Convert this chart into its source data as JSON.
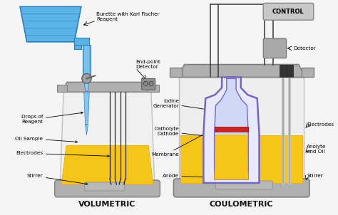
{
  "bg_color": "#f5f5f5",
  "title_volumetric": "VOLUMETRIC",
  "title_coulometric": "COULOMETRIC",
  "burette_label": "Burette with Karl Fischer\nReagent",
  "endpoint_label": "End-point\nDetector",
  "drops_label": "Drops of\nReagent",
  "oil_sample_label": "Oil Sample",
  "electrodes_label_v": "Electrodes",
  "stirrer_label_v": "Stirrer",
  "iodine_label": "Iodine\nGenerator",
  "catholyte_label": "Catholyte\nCathode",
  "membrane_label": "Membrane",
  "anode_label": "Anode",
  "electrodes_label_c": "Electrodes",
  "anolyte_label": "Anolyte\nand Oil",
  "stirrer_label_c": "Stirrer",
  "control_label": "CONTROL",
  "detector_label": "Detector",
  "fig_width": 4.74,
  "fig_height": 3.02,
  "burette_color": "#5ab4e8",
  "burette_dark": "#2d7fbf",
  "burette_stripe": "#3a8fc7",
  "vessel_glass": "#e8e8e8",
  "vessel_cap": "#b0b0b0",
  "vessel_cap_dark": "#808080",
  "liquid_yellow": "#f0a800",
  "liquid_yellow_light": "#f5c518",
  "stirrer_color": "#aaaaaa",
  "electrode_color": "#222222",
  "inner_flask_edge": "#7766bb",
  "inner_flask_fill": "#e8e8ff",
  "cathode_fill": "#d0d8f8",
  "red_membrane": "#cc2222",
  "control_box": "#c8c8c8",
  "detector_box": "#a8a8a8",
  "wire_color": "#444444"
}
